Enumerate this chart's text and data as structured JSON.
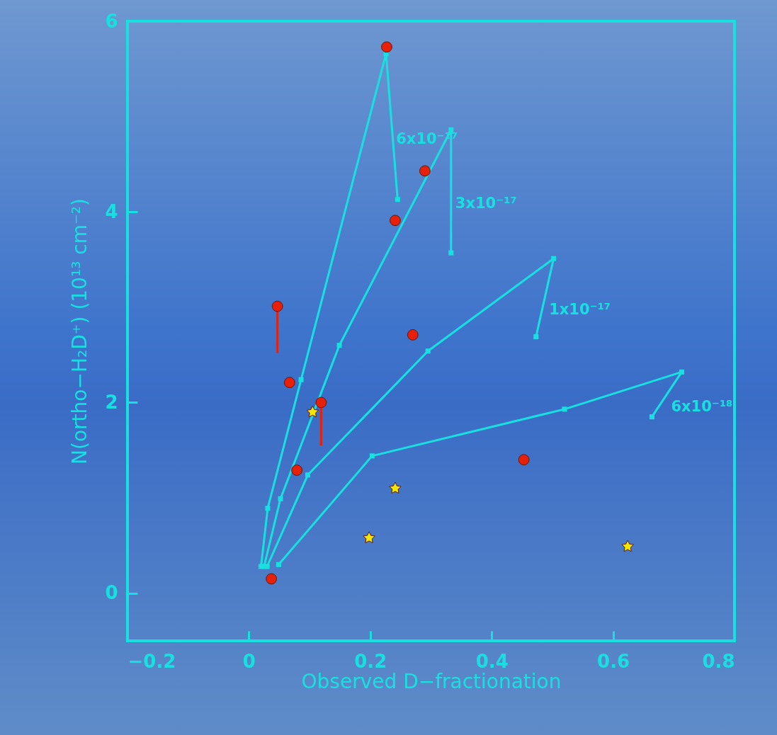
{
  "chart_data": {
    "type": "scatter",
    "xlabel": "Observed D−fractionation",
    "ylabel": "N(ortho−H₂D⁺) (10¹³ cm⁻²)",
    "xlim": [
      -0.2,
      0.8
    ],
    "ylim": [
      -0.5,
      6
    ],
    "xticks": [
      -0.2,
      0,
      0.2,
      0.4,
      0.6,
      0.8
    ],
    "yticks": [
      0,
      2,
      4,
      6
    ],
    "grid": false,
    "series": [
      {
        "type": "line",
        "name": "6x10⁻¹⁷",
        "color": "#19e0e0",
        "marker": "square",
        "x": [
          0.02,
          0.031,
          0.086,
          0.226,
          0.245
        ],
        "values": [
          0.28,
          0.89,
          2.24,
          5.66,
          4.13
        ]
      },
      {
        "type": "line",
        "name": "3x10⁻¹⁷",
        "color": "#19e0e0",
        "marker": "square",
        "x": [
          0.025,
          0.052,
          0.149,
          0.333,
          0.333
        ],
        "values": [
          0.28,
          0.99,
          2.6,
          4.86,
          3.57
        ]
      },
      {
        "type": "line",
        "name": "1x10⁻¹⁷",
        "color": "#19e0e0",
        "marker": "square",
        "x": [
          0.03,
          0.097,
          0.295,
          0.502,
          0.473
        ],
        "values": [
          0.28,
          1.24,
          2.54,
          3.51,
          2.69
        ]
      },
      {
        "type": "line",
        "name": "6x10⁻¹⁸",
        "color": "#19e0e0",
        "marker": "square",
        "x": [
          0.049,
          0.203,
          0.52,
          0.713,
          0.664
        ],
        "values": [
          0.3,
          1.44,
          1.93,
          2.32,
          1.85
        ]
      },
      {
        "type": "scatter",
        "color": "#e8200a",
        "marker": "circle",
        "x": [
          0.227,
          0.29,
          0.241,
          0.047,
          0.27,
          0.067,
          0.119,
          0.079,
          0.453,
          0.037
        ],
        "values": [
          5.73,
          4.43,
          3.91,
          3.01,
          2.71,
          2.21,
          2.0,
          1.29,
          1.4,
          0.15
        ],
        "errors": [
          null,
          null,
          null,
          [
            2.52,
            3.01
          ],
          null,
          null,
          [
            1.55,
            2.0
          ],
          null,
          null,
          null
        ]
      },
      {
        "type": "scatter",
        "color": "#f5e600",
        "marker": "star",
        "x": [
          0.105,
          0.241,
          0.198,
          0.624
        ],
        "values": [
          1.9,
          1.1,
          0.58,
          0.49
        ]
      }
    ]
  }
}
